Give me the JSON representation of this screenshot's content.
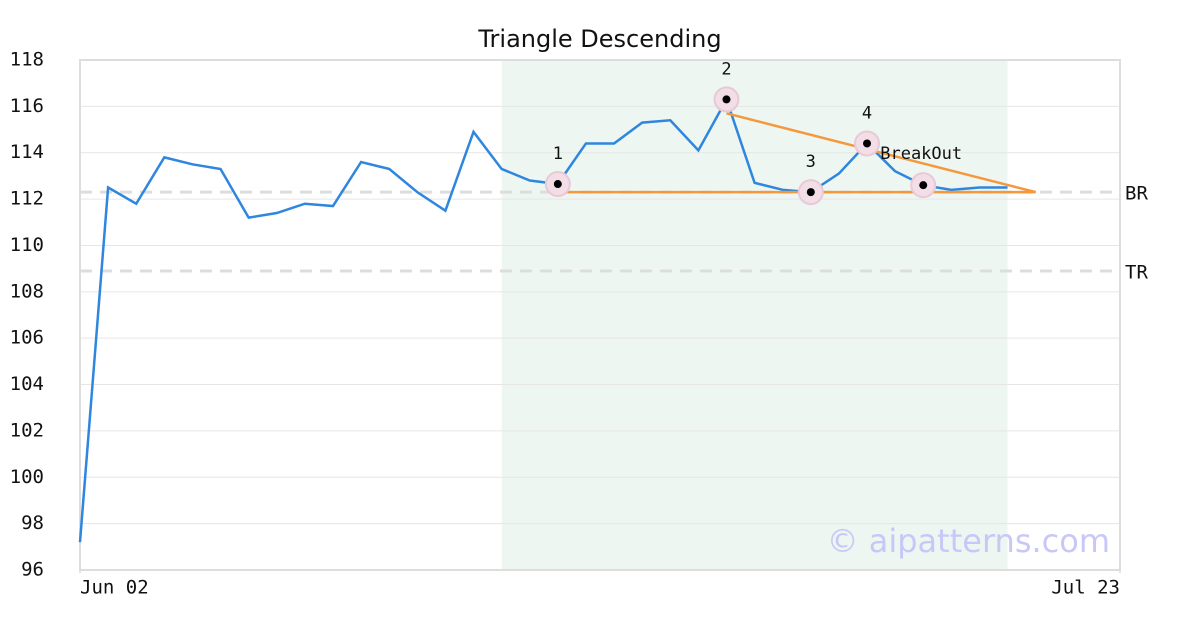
{
  "chart_data": {
    "type": "line",
    "title": "Triangle Descending",
    "x": [
      0,
      1,
      2,
      3,
      4,
      5,
      6,
      7,
      8,
      9,
      10,
      11,
      12,
      13,
      14,
      15,
      16,
      17,
      18,
      19,
      20,
      21,
      22,
      23,
      24,
      25,
      26,
      27,
      28,
      29,
      30,
      31,
      32,
      33
    ],
    "series": [
      {
        "color": "#2e86de",
        "values": [
          97.2,
          112.5,
          111.8,
          113.8,
          113.5,
          113.3,
          111.2,
          111.4,
          111.8,
          111.7,
          113.6,
          113.3,
          112.3,
          111.5,
          114.9,
          113.3,
          112.8,
          112.65,
          114.4,
          114.4,
          115.3,
          115.4,
          114.1,
          116.3,
          112.7,
          112.4,
          112.3,
          113.1,
          114.4,
          113.2,
          112.6,
          112.4,
          112.5,
          112.5
        ]
      }
    ],
    "xlim": [
      0,
      37
    ],
    "xticks": [
      {
        "value": 0,
        "label": "Jun 02"
      },
      {
        "value": 37,
        "label": "Jul 23"
      }
    ],
    "ylim": [
      96,
      118
    ],
    "yticks": [
      96,
      98,
      100,
      102,
      104,
      106,
      108,
      110,
      112,
      114,
      116,
      118
    ],
    "grid": true,
    "shaded_region": {
      "x": [
        15,
        33
      ],
      "color": "#eef6f2"
    },
    "hlines": [
      {
        "value": 112.3,
        "label": "BR"
      },
      {
        "value": 108.9,
        "label": "TR"
      }
    ],
    "trendlines": [
      {
        "x": [
          17,
          34
        ],
        "y": [
          112.3,
          112.3
        ],
        "color": "#f5973a"
      },
      {
        "x": [
          23,
          34
        ],
        "y": [
          115.7,
          112.3
        ],
        "color": "#f5973a"
      }
    ],
    "points": [
      {
        "x": 17,
        "y": 112.65,
        "label": "1"
      },
      {
        "x": 23,
        "y": 116.3,
        "label": "2"
      },
      {
        "x": 26,
        "y": 112.3,
        "label": "3"
      },
      {
        "x": 28,
        "y": 114.4,
        "label": "4"
      },
      {
        "x": 30,
        "y": 112.6,
        "label": "BreakOut"
      }
    ],
    "watermark": "© aipatterns.com"
  }
}
